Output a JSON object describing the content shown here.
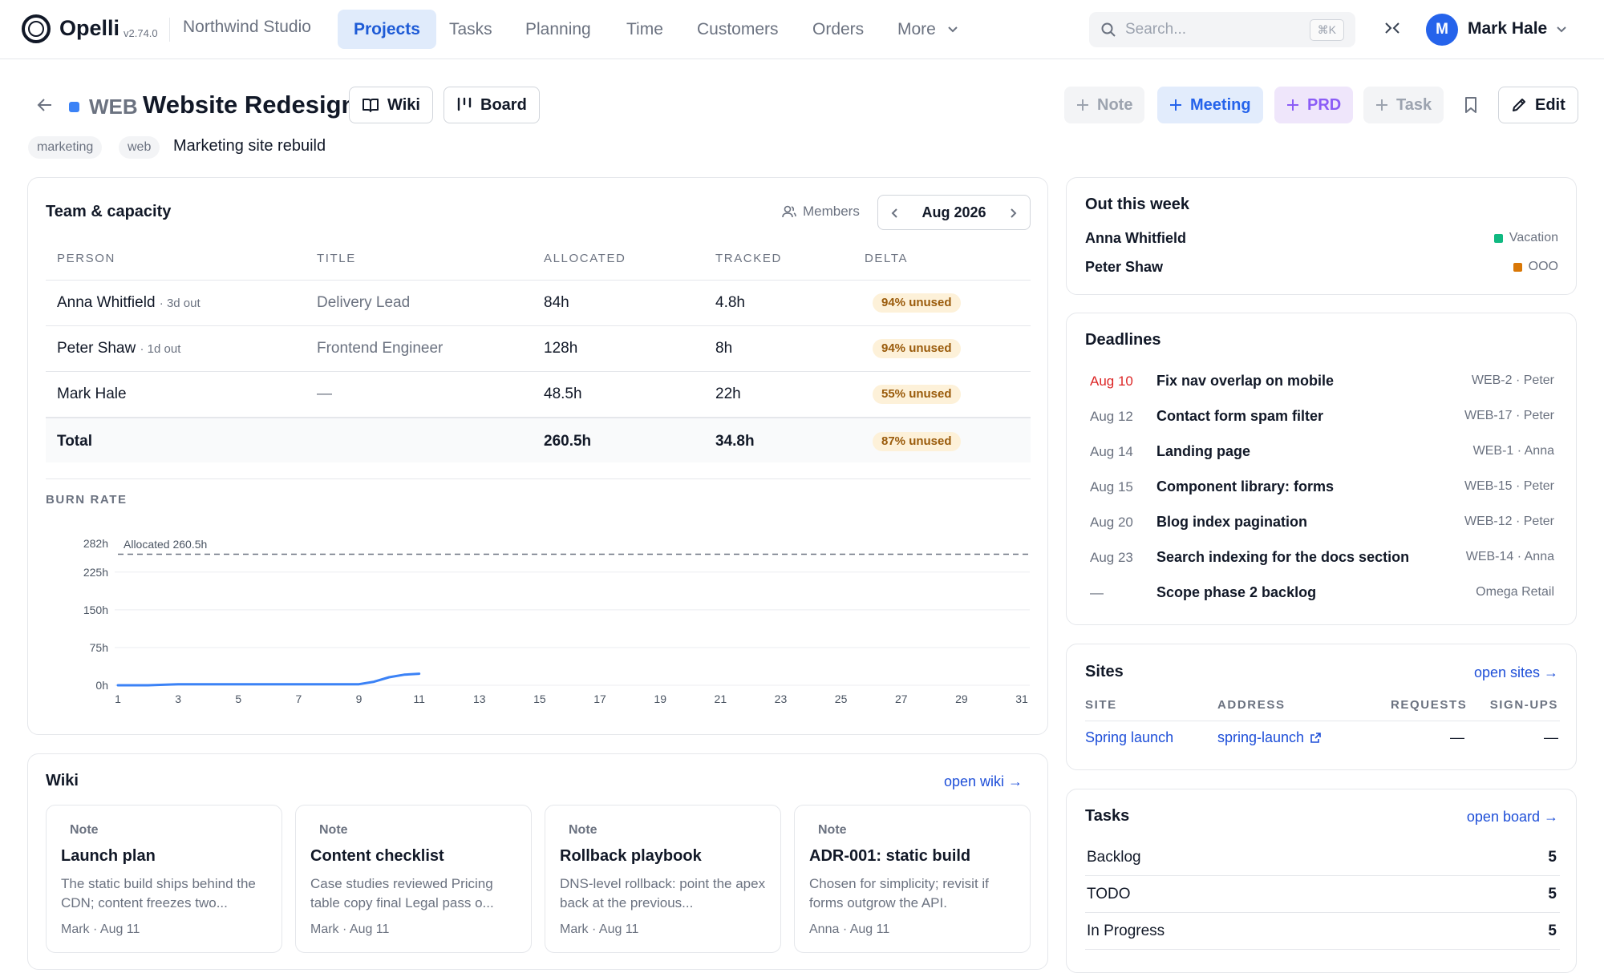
{
  "app": {
    "name": "Opelli",
    "version": "v2.74.0",
    "org": "Northwind Studio"
  },
  "nav": {
    "items": [
      "Projects",
      "Tasks",
      "Planning",
      "Time",
      "Customers",
      "Orders",
      "More"
    ],
    "active": "Projects"
  },
  "search": {
    "placeholder": "Search...",
    "shortcut": "⌘K"
  },
  "user": {
    "initial": "M",
    "name": "Mark Hale"
  },
  "project": {
    "key": "WEB",
    "title": "Website Redesign",
    "color": "#3b82f6",
    "subtitle": "Marketing site rebuild",
    "tags": [
      "marketing",
      "web"
    ],
    "buttons": {
      "wiki": "Wiki",
      "board": "Board"
    },
    "actions": {
      "note": "Note",
      "meeting": "Meeting",
      "prd": "PRD",
      "task": "Task",
      "edit": "Edit"
    }
  },
  "team": {
    "title": "Team & capacity",
    "members_label": "Members",
    "month": "Aug 2026",
    "headers": [
      "PERSON",
      "TITLE",
      "ALLOCATED",
      "TRACKED",
      "DELTA"
    ],
    "rows": [
      {
        "person": "Anna Whitfield",
        "note": "· 3d out",
        "title": "Delivery Lead",
        "allocated": "84h",
        "tracked": "4.8h",
        "delta": "94% unused"
      },
      {
        "person": "Peter Shaw",
        "note": "· 1d out",
        "title": "Frontend Engineer",
        "allocated": "128h",
        "tracked": "8h",
        "delta": "94% unused"
      },
      {
        "person": "Mark Hale",
        "note": "",
        "title": "—",
        "allocated": "48.5h",
        "tracked": "22h",
        "delta": "55% unused"
      }
    ],
    "total": {
      "label": "Total",
      "allocated": "260.5h",
      "tracked": "34.8h",
      "delta": "87% unused"
    }
  },
  "burn": {
    "label": "BURN RATE",
    "allocated_label": "Allocated 260.5h"
  },
  "chart_data": {
    "type": "line",
    "title": "BURN RATE",
    "xlabel": "",
    "ylabel": "",
    "x_ticks": [
      1,
      3,
      5,
      7,
      9,
      11,
      13,
      15,
      17,
      19,
      21,
      23,
      25,
      27,
      29,
      31
    ],
    "y_ticks": [
      "0h",
      "75h",
      "150h",
      "225h",
      "282h"
    ],
    "ylim": [
      0,
      282
    ],
    "xlim": [
      1,
      31
    ],
    "grid": true,
    "reference_line": {
      "label": "Allocated 260.5h",
      "value": 260.5
    },
    "series": [
      {
        "x": [
          1,
          2,
          3,
          4,
          5,
          6,
          7,
          8,
          9,
          9.5,
          10,
          10.5,
          11
        ],
        "y": [
          0,
          0,
          2,
          2,
          2,
          2,
          2,
          2,
          2,
          7,
          16,
          21,
          23
        ],
        "color": "#3b82f6"
      }
    ]
  },
  "wiki": {
    "title": "Wiki",
    "link": "open wiki →",
    "cards": [
      {
        "type": "Note",
        "title": "Launch plan",
        "body": "The static build ships behind the CDN; content freezes two...",
        "meta": "Mark · Aug 11"
      },
      {
        "type": "Note",
        "title": "Content checklist",
        "body": "Case studies reviewed Pricing table copy final Legal pass o...",
        "meta": "Mark · Aug 11"
      },
      {
        "type": "Note",
        "title": "Rollback playbook",
        "body": "DNS-level rollback: point the apex back at the previous...",
        "meta": "Mark · Aug 11"
      },
      {
        "type": "Note",
        "title": "ADR-001: static build",
        "body": "Chosen for simplicity; revisit if forms outgrow the API.",
        "meta": "Anna · Aug 11"
      }
    ]
  },
  "out": {
    "title": "Out this week",
    "rows": [
      {
        "name": "Anna Whitfield",
        "status": "Vacation",
        "color": "#10b981"
      },
      {
        "name": "Peter Shaw",
        "status": "OOO",
        "color": "#d97706"
      }
    ]
  },
  "deadlines": {
    "title": "Deadlines",
    "rows": [
      {
        "date": "Aug 10",
        "title": "Fix nav overlap on mobile",
        "ref": "WEB-2 · Peter",
        "overdue": true
      },
      {
        "date": "Aug 12",
        "title": "Contact form spam filter",
        "ref": "WEB-17 · Peter"
      },
      {
        "date": "Aug 14",
        "title": "Landing page",
        "ref": "WEB-1 · Anna"
      },
      {
        "date": "Aug 15",
        "title": "Component library: forms",
        "ref": "WEB-15 · Peter"
      },
      {
        "date": "Aug 20",
        "title": "Blog index pagination",
        "ref": "WEB-12 · Peter"
      },
      {
        "date": "Aug 23",
        "title": "Search indexing for the docs section",
        "ref": "WEB-14 · Anna"
      },
      {
        "date": "—",
        "title": "Scope phase 2 backlog",
        "ref": "Omega Retail"
      }
    ]
  },
  "sites": {
    "title": "Sites",
    "link": "open sites →",
    "headers": [
      "SITE",
      "ADDRESS",
      "REQUESTS",
      "SIGN-UPS"
    ],
    "rows": [
      {
        "site": "Spring launch",
        "address": "spring-launch",
        "requests": "—",
        "signups": "—"
      }
    ]
  },
  "tasks": {
    "title": "Tasks",
    "link": "open board →",
    "rows": [
      {
        "label": "Backlog",
        "count": "5"
      },
      {
        "label": "TODO",
        "count": "5"
      },
      {
        "label": "In Progress",
        "count": "5"
      }
    ]
  }
}
